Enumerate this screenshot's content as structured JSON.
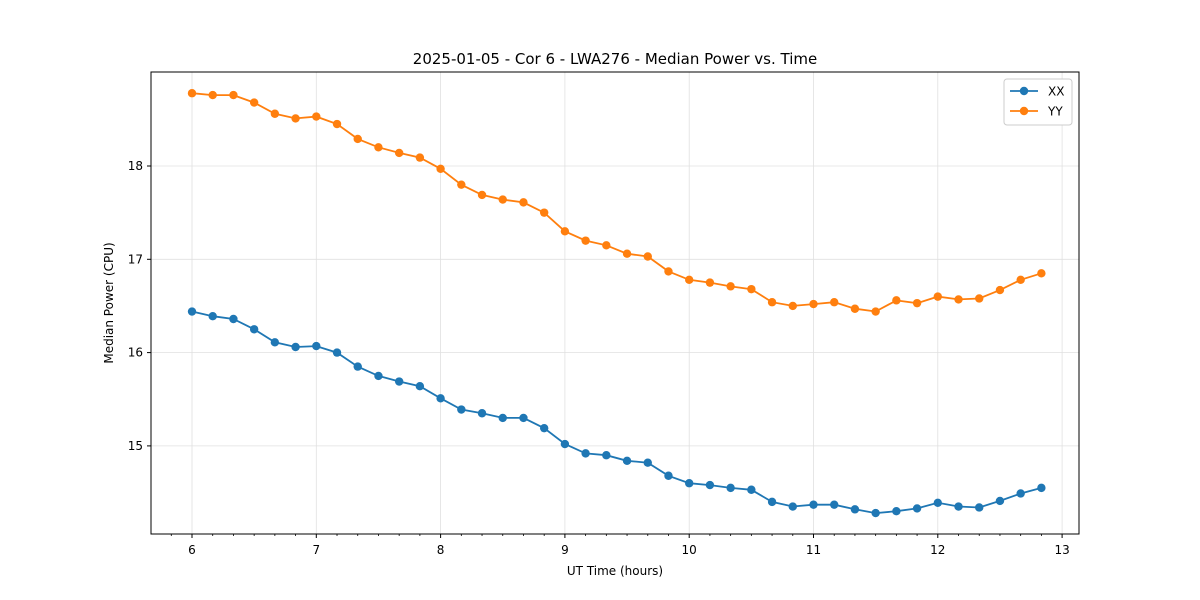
{
  "chart_data": {
    "type": "line",
    "title": "2025-01-05 - Cor 6 - LWA276 - Median Power vs. Time",
    "xlabel": "UT Time (hours)",
    "ylabel": "Median Power (CPU)",
    "xlim": [
      5.67,
      13.15
    ],
    "ylim": [
      14.07,
      18.98
    ],
    "xticks": [
      6,
      7,
      8,
      9,
      10,
      11,
      12,
      13
    ],
    "yticks": [
      15,
      16,
      17,
      18
    ],
    "grid": true,
    "legend_position": "top-right",
    "x": [
      6.0,
      6.1667,
      6.3333,
      6.5,
      6.6667,
      6.8333,
      7.0,
      7.1667,
      7.3333,
      7.5,
      7.6667,
      7.8333,
      8.0,
      8.1667,
      8.3333,
      8.5,
      8.6667,
      8.8333,
      9.0,
      9.1667,
      9.3333,
      9.5,
      9.6667,
      9.8333,
      10.0,
      10.1667,
      10.3333,
      10.5,
      10.6667,
      10.8333,
      11.0,
      11.1667,
      11.3333,
      11.5,
      11.6667,
      11.8333,
      12.0,
      12.1667,
      12.3333,
      12.5,
      12.6667,
      12.8333
    ],
    "series": [
      {
        "name": "XX",
        "color": "#1f77b4",
        "values": [
          16.44,
          16.39,
          16.36,
          16.25,
          16.11,
          16.06,
          16.07,
          16.0,
          15.85,
          15.75,
          15.69,
          15.64,
          15.51,
          15.39,
          15.35,
          15.3,
          15.3,
          15.19,
          15.02,
          14.92,
          14.9,
          14.84,
          14.82,
          14.68,
          14.6,
          14.58,
          14.55,
          14.53,
          14.4,
          14.35,
          14.37,
          14.37,
          14.32,
          14.28,
          14.3,
          14.33,
          14.39,
          14.35,
          14.34,
          14.41,
          14.49,
          14.55
        ]
      },
      {
        "name": "YY",
        "color": "#ff7f0e",
        "values": [
          18.78,
          18.76,
          18.76,
          18.68,
          18.56,
          18.51,
          18.53,
          18.45,
          18.29,
          18.2,
          18.14,
          18.09,
          17.97,
          17.8,
          17.69,
          17.64,
          17.61,
          17.5,
          17.3,
          17.2,
          17.15,
          17.06,
          17.03,
          16.87,
          16.78,
          16.75,
          16.71,
          16.68,
          16.54,
          16.5,
          16.52,
          16.54,
          16.47,
          16.44,
          16.56,
          16.53,
          16.6,
          16.57,
          16.58,
          16.67,
          16.78,
          16.85
        ]
      }
    ]
  }
}
